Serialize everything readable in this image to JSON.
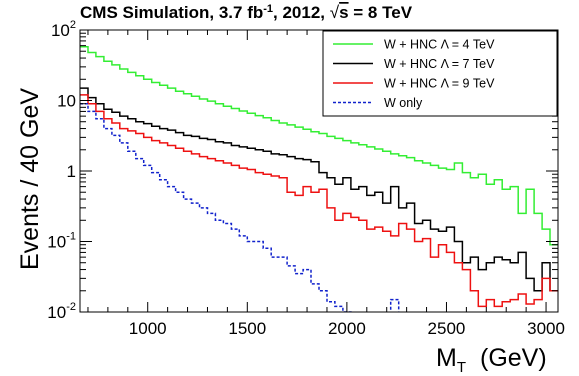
{
  "chart_data": {
    "type": "line",
    "style": "step-histogram",
    "title_parts": {
      "lead": "CMS Simulation,  3.7 fb",
      "sup": "-1",
      "mid": ",  2012,  ",
      "sqrt": "s",
      "tail": " = 8 TeV"
    },
    "xlabel": {
      "main": "M",
      "sub": "T",
      "unit": "(GeV)"
    },
    "ylabel": "Events / 40 GeV",
    "xlim": [
      660,
      3060
    ],
    "ylim": [
      0.01,
      100
    ],
    "yscale": "log",
    "x_ticks": [
      1000,
      1500,
      2000,
      2500,
      3000
    ],
    "y_ticks": [
      {
        "value": 100,
        "label": "10",
        "sup": "2"
      },
      {
        "value": 10,
        "label": "10",
        "sup": ""
      },
      {
        "value": 1,
        "label": "1",
        "sup": ""
      },
      {
        "value": 0.1,
        "label": "10",
        "sup": "-1"
      },
      {
        "value": 0.01,
        "label": "10",
        "sup": "-2"
      }
    ],
    "legend_position": "top-right",
    "bin_width": 40,
    "series": [
      {
        "name": "W + HNC Λ = 4 TeV",
        "color": "#33ee33",
        "dash": "solid",
        "x": [
          660,
          700,
          740,
          780,
          820,
          860,
          900,
          940,
          980,
          1020,
          1060,
          1100,
          1140,
          1180,
          1220,
          1260,
          1300,
          1340,
          1380,
          1420,
          1460,
          1500,
          1540,
          1580,
          1620,
          1660,
          1700,
          1740,
          1780,
          1820,
          1860,
          1900,
          1940,
          1980,
          2020,
          2060,
          2100,
          2140,
          2180,
          2220,
          2260,
          2300,
          2340,
          2380,
          2420,
          2460,
          2500,
          2540,
          2580,
          2620,
          2660,
          2700,
          2740,
          2780,
          2820,
          2860,
          2900,
          2940,
          2980,
          3020
        ],
        "y": [
          58,
          48,
          42,
          36,
          32,
          28,
          25,
          22.5,
          20,
          18,
          16.5,
          15,
          13.5,
          12.5,
          11.5,
          10.5,
          9.8,
          9,
          8.3,
          7.7,
          7.1,
          6.6,
          6.1,
          5.7,
          5.2,
          4.8,
          4.5,
          4.2,
          3.9,
          3.6,
          3.4,
          3.1,
          2.9,
          2.7,
          2.5,
          2.35,
          2.2,
          2.05,
          1.9,
          1.75,
          1.65,
          1.55,
          1.4,
          1.3,
          1.2,
          1.1,
          1.05,
          1.3,
          0.95,
          0.8,
          0.9,
          0.65,
          0.75,
          0.55,
          0.6,
          0.25,
          0.55,
          0.25,
          0.15,
          0.09
        ]
      },
      {
        "name": "W + HNC Λ = 7 TeV",
        "color": "#000000",
        "dash": "solid",
        "x": [
          660,
          700,
          740,
          780,
          820,
          860,
          900,
          940,
          980,
          1020,
          1060,
          1100,
          1140,
          1180,
          1220,
          1260,
          1300,
          1340,
          1380,
          1420,
          1460,
          1500,
          1540,
          1580,
          1620,
          1660,
          1700,
          1740,
          1780,
          1820,
          1860,
          1900,
          1940,
          1980,
          2020,
          2060,
          2100,
          2140,
          2180,
          2220,
          2260,
          2300,
          2340,
          2380,
          2420,
          2460,
          2500,
          2540,
          2580,
          2620,
          2660,
          2700,
          2740,
          2780,
          2820,
          2860,
          2900,
          2940,
          2980,
          3020
        ],
        "y": [
          15,
          11,
          9,
          7.5,
          6.8,
          6,
          5.5,
          5,
          4.7,
          4.3,
          4,
          3.8,
          3.5,
          3.2,
          3.1,
          2.9,
          2.8,
          2.6,
          2.5,
          2.3,
          2.2,
          2.1,
          2,
          1.9,
          1.75,
          1.7,
          1.6,
          1.5,
          1.45,
          1.35,
          0.95,
          0.8,
          0.65,
          0.8,
          0.55,
          0.6,
          0.45,
          0.5,
          0.35,
          0.6,
          0.3,
          0.35,
          0.18,
          0.2,
          0.15,
          0.14,
          0.16,
          0.1,
          0.05,
          0.06,
          0.04,
          0.05,
          0.06,
          0.055,
          0.05,
          0.07,
          0.03,
          0.02,
          0.05,
          0.02
        ]
      },
      {
        "name": "W + HNC Λ = 9 TeV",
        "color": "#ee1111",
        "dash": "solid",
        "x": [
          660,
          700,
          740,
          780,
          820,
          860,
          900,
          940,
          980,
          1020,
          1060,
          1100,
          1140,
          1180,
          1220,
          1260,
          1300,
          1340,
          1380,
          1420,
          1460,
          1500,
          1540,
          1580,
          1620,
          1660,
          1700,
          1740,
          1780,
          1820,
          1860,
          1900,
          1940,
          1980,
          2020,
          2060,
          2100,
          2140,
          2180,
          2220,
          2260,
          2300,
          2340,
          2380,
          2420,
          2460,
          2500,
          2540,
          2580,
          2620,
          2660,
          2700,
          2740,
          2780,
          2820,
          2860,
          2900,
          2940,
          2980,
          3020
        ],
        "y": [
          12,
          9,
          7,
          5.5,
          4.8,
          4,
          3.7,
          3.4,
          3,
          2.7,
          2.5,
          2.3,
          2.1,
          1.9,
          1.75,
          1.6,
          1.5,
          1.4,
          1.3,
          1.2,
          1.1,
          1.05,
          0.95,
          0.9,
          0.85,
          0.8,
          0.5,
          0.45,
          0.6,
          0.5,
          0.55,
          0.3,
          0.2,
          0.25,
          0.22,
          0.2,
          0.15,
          0.16,
          0.14,
          0.12,
          0.18,
          0.15,
          0.1,
          0.11,
          0.06,
          0.09,
          0.07,
          0.05,
          0.04,
          0.02,
          0.012,
          0.015,
          0.012,
          0.014,
          0.015,
          0.018,
          0.013,
          0.015,
          0.03,
          0.02
        ]
      },
      {
        "name": "W only",
        "color": "#1122cc",
        "dash": "dotted",
        "x": [
          660,
          700,
          740,
          780,
          820,
          860,
          900,
          940,
          980,
          1020,
          1060,
          1100,
          1140,
          1180,
          1220,
          1260,
          1300,
          1340,
          1380,
          1420,
          1460,
          1500,
          1540,
          1580,
          1620,
          1660,
          1700,
          1740,
          1780,
          1820,
          1860,
          1900,
          1940,
          1980,
          2020,
          2060,
          2100,
          2140,
          2180,
          2220,
          2260,
          2300
        ],
        "y": [
          9,
          7,
          5.5,
          4,
          3.2,
          2.5,
          1.9,
          1.5,
          1.2,
          0.95,
          0.75,
          0.6,
          0.5,
          0.4,
          0.35,
          0.3,
          0.25,
          0.2,
          0.18,
          0.15,
          0.12,
          0.1,
          0.1,
          0.08,
          0.06,
          0.06,
          0.045,
          0.035,
          0.04,
          0.025,
          0.02,
          0.014,
          0.012,
          0.01,
          0.009,
          0.008,
          0.009,
          0.008,
          0.008,
          0.015,
          0.009,
          0.009
        ]
      }
    ]
  }
}
